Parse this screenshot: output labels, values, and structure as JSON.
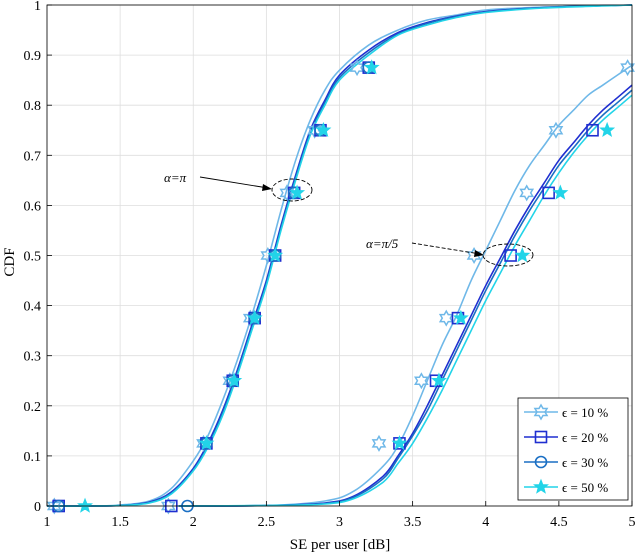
{
  "chart_data": {
    "type": "line",
    "title": "",
    "xlabel": "SE per user [dB]",
    "ylabel": "CDF",
    "xlim": [
      1,
      5
    ],
    "ylim": [
      0,
      1
    ],
    "xticks": [
      "1",
      "1.5",
      "2",
      "2.5",
      "3",
      "3.5",
      "4",
      "4.5",
      "5"
    ],
    "yticks": [
      "0",
      "0.1",
      "0.2",
      "0.3",
      "0.4",
      "0.5",
      "0.6",
      "0.7",
      "0.8",
      "0.9",
      "1"
    ],
    "grid": true,
    "legend_position": "bottom-right",
    "legend": [
      {
        "label": "ϵ = 10 %",
        "color": "#6fb8e8",
        "marker": "hexagram"
      },
      {
        "label": "ϵ = 20 %",
        "color": "#1f2fd0",
        "marker": "square"
      },
      {
        "label": "ϵ = 30 %",
        "color": "#1a6fc4",
        "marker": "circle"
      },
      {
        "label": "ϵ = 50 %",
        "color": "#22d4e8",
        "marker": "star"
      }
    ],
    "annotations": [
      {
        "text": "α=π",
        "x": 2.7,
        "y": 0.63
      },
      {
        "text": "α=π/5",
        "x": 4.2,
        "y": 0.5
      }
    ],
    "groups": [
      {
        "alpha": "α=π",
        "series": [
          {
            "name": "ϵ = 10 %",
            "x": [
              1.0,
              1.3,
              1.5,
              1.7,
              1.85,
              2.0,
              2.1,
              2.2,
              2.3,
              2.4,
              2.5,
              2.6,
              2.7,
              2.8,
              2.9,
              3.0,
              3.2,
              3.4,
              3.6,
              3.8,
              4.0,
              4.4,
              5.0
            ],
            "y": [
              0,
              0,
              0.002,
              0.01,
              0.035,
              0.09,
              0.14,
              0.21,
              0.29,
              0.38,
              0.48,
              0.59,
              0.69,
              0.77,
              0.83,
              0.87,
              0.92,
              0.95,
              0.97,
              0.98,
              0.99,
              0.996,
              1.0
            ]
          },
          {
            "name": "ϵ = 20 %",
            "x": [
              1.0,
              1.3,
              1.5,
              1.7,
              1.85,
              2.0,
              2.1,
              2.2,
              2.3,
              2.4,
              2.5,
              2.6,
              2.7,
              2.8,
              2.9,
              3.0,
              3.2,
              3.4,
              3.6,
              3.8,
              4.0,
              4.4,
              5.0
            ],
            "y": [
              0,
              0,
              0.001,
              0.008,
              0.028,
              0.075,
              0.125,
              0.19,
              0.27,
              0.36,
              0.45,
              0.56,
              0.66,
              0.75,
              0.81,
              0.86,
              0.91,
              0.945,
              0.965,
              0.978,
              0.987,
              0.995,
              1.0
            ]
          },
          {
            "name": "ϵ = 30 %",
            "x": [
              1.0,
              1.3,
              1.5,
              1.7,
              1.85,
              2.0,
              2.1,
              2.2,
              2.3,
              2.4,
              2.5,
              2.6,
              2.7,
              2.8,
              2.9,
              3.0,
              3.2,
              3.4,
              3.6,
              3.8,
              4.0,
              4.4,
              5.0
            ],
            "y": [
              0,
              0,
              0.001,
              0.007,
              0.026,
              0.072,
              0.12,
              0.185,
              0.265,
              0.355,
              0.445,
              0.555,
              0.655,
              0.745,
              0.805,
              0.855,
              0.905,
              0.942,
              0.963,
              0.977,
              0.986,
              0.995,
              1.0
            ]
          },
          {
            "name": "ϵ = 50 %",
            "x": [
              1.0,
              1.3,
              1.5,
              1.7,
              1.85,
              2.0,
              2.1,
              2.2,
              2.3,
              2.4,
              2.5,
              2.6,
              2.7,
              2.8,
              2.9,
              3.0,
              3.2,
              3.4,
              3.6,
              3.8,
              4.0,
              4.4,
              5.0
            ],
            "y": [
              0,
              0,
              0.001,
              0.006,
              0.024,
              0.07,
              0.117,
              0.18,
              0.26,
              0.35,
              0.44,
              0.55,
              0.65,
              0.74,
              0.8,
              0.85,
              0.9,
              0.94,
              0.96,
              0.975,
              0.985,
              0.994,
              1.0
            ]
          }
        ]
      },
      {
        "alpha": "α=π/5",
        "series": [
          {
            "name": "ϵ = 10 %",
            "x": [
              1.9,
              2.5,
              2.9,
              3.1,
              3.3,
              3.4,
              3.5,
              3.6,
              3.7,
              3.8,
              3.9,
              4.0,
              4.1,
              4.2,
              4.3,
              4.4,
              4.5,
              4.6,
              4.7,
              4.8,
              4.9,
              5.0
            ],
            "y": [
              0,
              0.001,
              0.01,
              0.03,
              0.08,
              0.12,
              0.18,
              0.25,
              0.32,
              0.38,
              0.45,
              0.51,
              0.57,
              0.63,
              0.68,
              0.72,
              0.76,
              0.79,
              0.82,
              0.84,
              0.86,
              0.88
            ]
          },
          {
            "name": "ϵ = 20 %",
            "x": [
              1.9,
              2.5,
              2.9,
              3.1,
              3.3,
              3.4,
              3.5,
              3.6,
              3.7,
              3.8,
              3.9,
              4.0,
              4.1,
              4.2,
              4.3,
              4.4,
              4.5,
              4.6,
              4.7,
              4.8,
              4.9,
              5.0
            ],
            "y": [
              0,
              0.001,
              0.006,
              0.02,
              0.06,
              0.1,
              0.145,
              0.2,
              0.26,
              0.32,
              0.38,
              0.44,
              0.495,
              0.55,
              0.6,
              0.645,
              0.69,
              0.725,
              0.76,
              0.79,
              0.815,
              0.84
            ]
          },
          {
            "name": "ϵ = 30 %",
            "x": [
              1.9,
              2.5,
              2.9,
              3.1,
              3.3,
              3.4,
              3.5,
              3.6,
              3.7,
              3.8,
              3.9,
              4.0,
              4.1,
              4.2,
              4.3,
              4.4,
              4.5,
              4.6,
              4.7,
              4.8,
              4.9,
              5.0
            ],
            "y": [
              0,
              0.001,
              0.005,
              0.018,
              0.055,
              0.095,
              0.14,
              0.19,
              0.25,
              0.31,
              0.37,
              0.43,
              0.485,
              0.54,
              0.59,
              0.635,
              0.68,
              0.715,
              0.75,
              0.78,
              0.805,
              0.83
            ]
          },
          {
            "name": "ϵ = 50 %",
            "x": [
              1.9,
              2.5,
              2.9,
              3.1,
              3.3,
              3.4,
              3.5,
              3.6,
              3.7,
              3.8,
              3.9,
              4.0,
              4.1,
              4.2,
              4.3,
              4.4,
              4.5,
              4.6,
              4.7,
              4.8,
              4.9,
              5.0
            ],
            "y": [
              0,
              0.001,
              0.004,
              0.015,
              0.048,
              0.085,
              0.125,
              0.175,
              0.23,
              0.29,
              0.35,
              0.41,
              0.465,
              0.52,
              0.57,
              0.62,
              0.665,
              0.705,
              0.74,
              0.77,
              0.795,
              0.82
            ]
          }
        ]
      }
    ],
    "markers": [
      {
        "name": "ϵ = 10 %",
        "x": [
          1.05,
          2.07,
          2.25,
          2.39,
          2.51,
          2.64,
          2.83,
          3.12,
          1.83,
          3.27,
          3.56,
          3.73,
          3.92,
          4.28,
          4.48,
          4.97
        ],
        "y": [
          0,
          0.125,
          0.25,
          0.375,
          0.5,
          0.625,
          0.75,
          0.875,
          0,
          0.125,
          0.25,
          0.375,
          0.5,
          0.625,
          0.75,
          0.875
        ]
      },
      {
        "name": "ϵ = 20 %",
        "x": [
          1.08,
          2.09,
          2.27,
          2.42,
          2.56,
          2.69,
          2.87,
          3.2,
          1.85,
          3.41,
          3.66,
          3.81,
          4.17,
          4.43,
          4.73
        ],
        "y": [
          0,
          0.125,
          0.25,
          0.375,
          0.5,
          0.625,
          0.75,
          0.875,
          0,
          0.125,
          0.25,
          0.375,
          0.5,
          0.625,
          0.75
        ]
      },
      {
        "name": "ϵ = 30 %",
        "x": [
          1.08,
          2.09,
          2.27,
          2.42,
          2.56,
          2.69,
          2.87,
          3.2,
          1.96
        ],
        "y": [
          0,
          0.125,
          0.25,
          0.375,
          0.5,
          0.625,
          0.75,
          0.875,
          0
        ]
      },
      {
        "name": "ϵ = 50 %",
        "x": [
          1.26,
          2.09,
          2.28,
          2.42,
          2.56,
          2.71,
          2.89,
          3.22,
          3.41,
          3.68,
          3.83,
          4.25,
          4.51,
          4.83
        ],
        "y": [
          0,
          0.125,
          0.25,
          0.375,
          0.5,
          0.625,
          0.75,
          0.875,
          0.125,
          0.25,
          0.375,
          0.5,
          0.625,
          0.75
        ]
      }
    ]
  }
}
